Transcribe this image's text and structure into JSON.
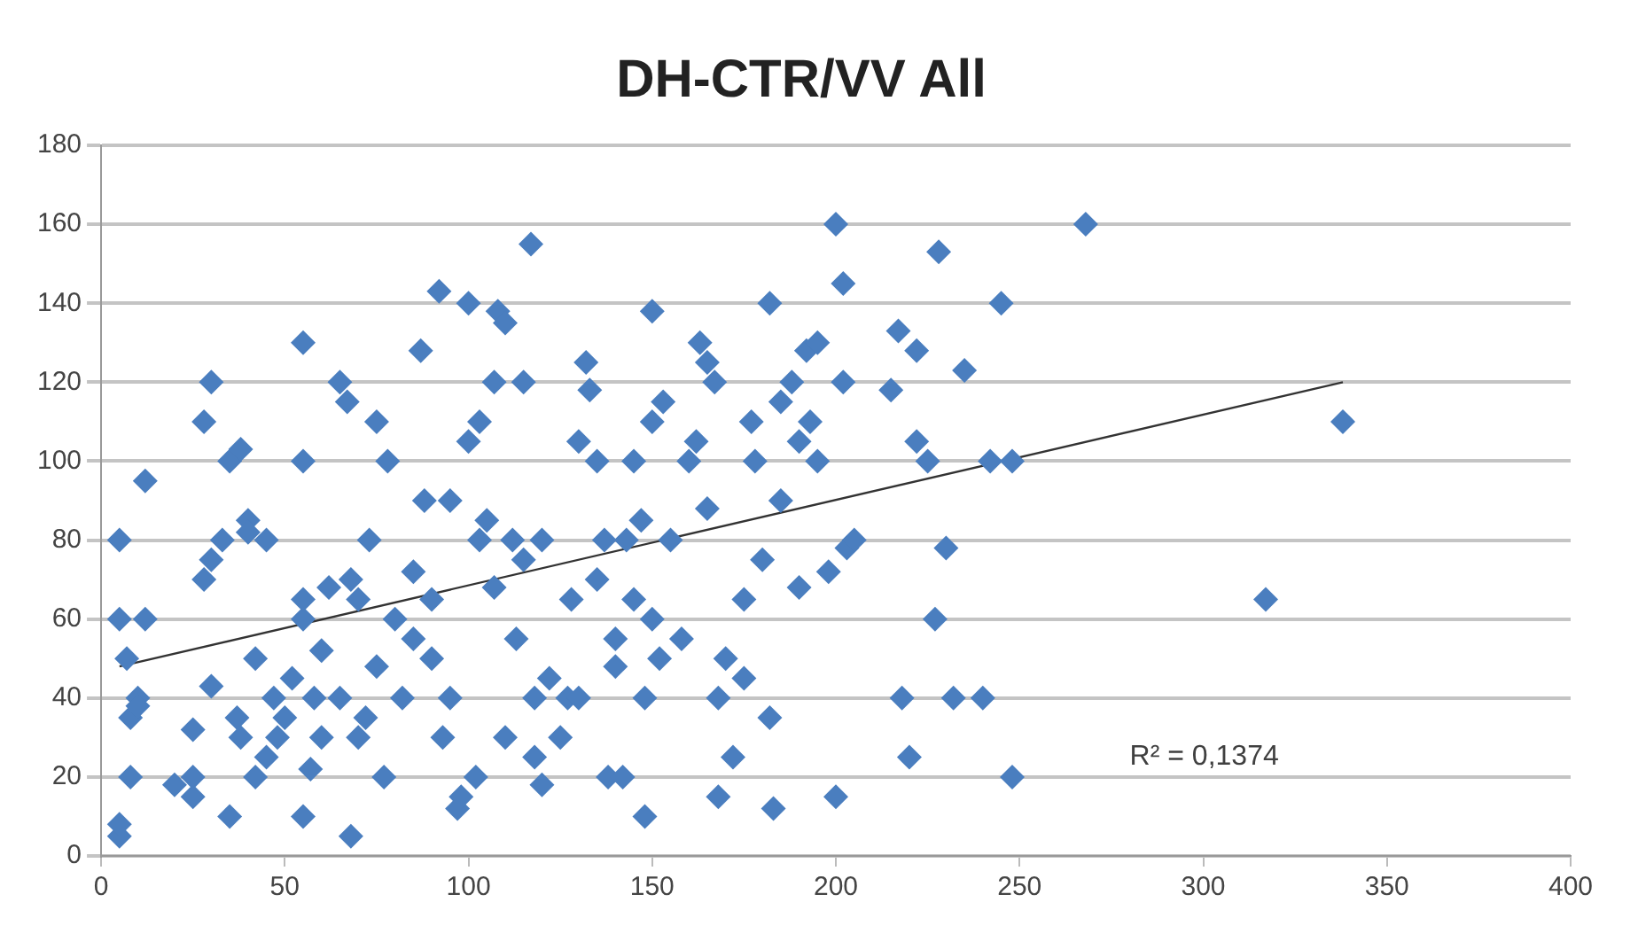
{
  "chart_data": {
    "type": "scatter",
    "title": "DH-CTR/VV All",
    "xlim": [
      0,
      400
    ],
    "xticks": [
      0,
      50,
      100,
      150,
      200,
      250,
      300,
      350,
      400
    ],
    "ylim": [
      0,
      180
    ],
    "yticks": [
      0,
      20,
      40,
      60,
      80,
      100,
      120,
      140,
      160,
      180
    ],
    "grid": "y",
    "legend": false,
    "series": [
      {
        "type": "scatter",
        "color": "#4a7ebf",
        "marker": "diamond",
        "x": [
          5,
          5,
          5,
          5,
          7,
          8,
          8,
          10,
          12,
          12,
          10,
          20,
          25,
          25,
          25,
          28,
          28,
          30,
          30,
          30,
          33,
          35,
          35,
          37,
          38,
          38,
          40,
          40,
          42,
          42,
          45,
          45,
          47,
          48,
          50,
          52,
          55,
          55,
          55,
          55,
          55,
          57,
          58,
          60,
          60,
          62,
          65,
          65,
          67,
          68,
          68,
          70,
          70,
          72,
          73,
          75,
          75,
          77,
          78,
          80,
          82,
          85,
          85,
          87,
          88,
          90,
          90,
          92,
          93,
          95,
          95,
          97,
          98,
          100,
          100,
          102,
          103,
          103,
          105,
          107,
          107,
          108,
          110,
          110,
          112,
          113,
          115,
          115,
          117,
          118,
          118,
          120,
          120,
          122,
          125,
          127,
          128,
          130,
          130,
          132,
          133,
          135,
          135,
          137,
          138,
          140,
          140,
          142,
          143,
          145,
          145,
          147,
          148,
          148,
          150,
          150,
          150,
          152,
          153,
          155,
          158,
          160,
          162,
          163,
          165,
          165,
          167,
          168,
          168,
          170,
          172,
          175,
          175,
          177,
          178,
          180,
          182,
          182,
          183,
          185,
          185,
          188,
          190,
          190,
          192,
          193,
          195,
          195,
          198,
          200,
          200,
          202,
          202,
          203,
          205,
          215,
          217,
          218,
          220,
          222,
          222,
          225,
          227,
          228,
          230,
          232,
          235,
          240,
          242,
          245,
          248,
          248,
          268,
          317,
          338
        ],
        "values": [
          5,
          8,
          80,
          60,
          50,
          35,
          20,
          40,
          60,
          95,
          38,
          18,
          15,
          20,
          32,
          70,
          110,
          120,
          75,
          43,
          80,
          100,
          10,
          35,
          103,
          30,
          85,
          82,
          50,
          20,
          80,
          25,
          40,
          30,
          35,
          45,
          130,
          100,
          60,
          65,
          10,
          22,
          40,
          52,
          30,
          68,
          120,
          40,
          115,
          70,
          5,
          30,
          65,
          35,
          80,
          110,
          48,
          20,
          100,
          60,
          40,
          72,
          55,
          128,
          90,
          50,
          65,
          143,
          30,
          40,
          90,
          12,
          15,
          105,
          140,
          20,
          110,
          80,
          85,
          120,
          68,
          138,
          135,
          30,
          80,
          55,
          120,
          75,
          155,
          40,
          25,
          18,
          80,
          45,
          30,
          40,
          65,
          40,
          105,
          125,
          118,
          100,
          70,
          80,
          20,
          55,
          48,
          20,
          80,
          65,
          100,
          85,
          10,
          40,
          138,
          110,
          60,
          50,
          115,
          80,
          55,
          100,
          105,
          130,
          88,
          125,
          120,
          15,
          40,
          50,
          25,
          65,
          45,
          110,
          100,
          75,
          140,
          35,
          12,
          115,
          90,
          120,
          105,
          68,
          128,
          110,
          130,
          100,
          72,
          160,
          15,
          145,
          120,
          78,
          80,
          118,
          133,
          40,
          25,
          128,
          105,
          100,
          60,
          153,
          78,
          40,
          123,
          40,
          100,
          140,
          100,
          20,
          160,
          65,
          110
        ]
      },
      {
        "type": "line",
        "color": "#333333",
        "marker": "none",
        "x": [
          5,
          338
        ],
        "values": [
          48,
          120
        ]
      }
    ],
    "annotations": [
      "R² = 0,1374"
    ]
  }
}
